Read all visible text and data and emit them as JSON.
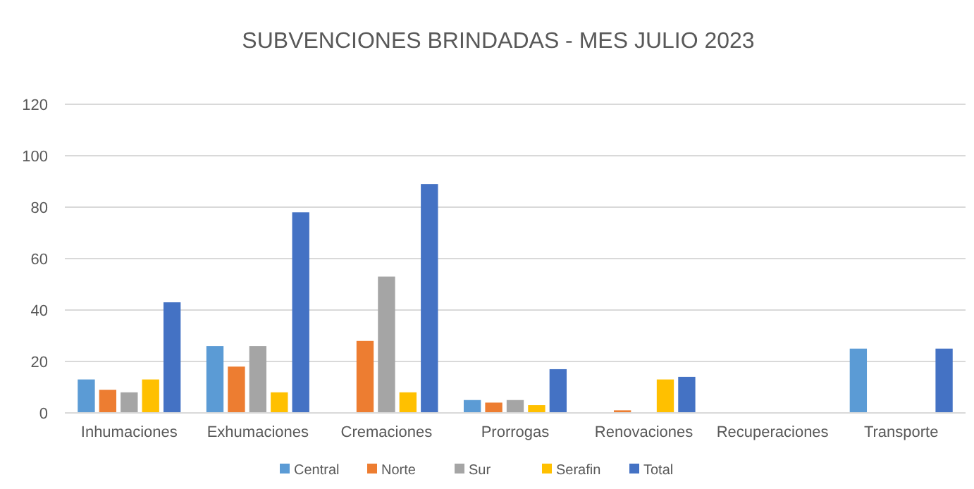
{
  "chart_data": {
    "type": "bar",
    "title": "SUBVENCIONES BRINDADAS - MES JULIO 2023",
    "categories": [
      "Inhumaciones",
      "Exhumaciones",
      "Cremaciones",
      "Prorrogas",
      "Renovaciones",
      "Recuperaciones",
      "Transporte"
    ],
    "series": [
      {
        "name": "Central",
        "color": "#5b9bd5",
        "values": [
          13,
          26,
          0,
          5,
          0,
          0,
          25
        ]
      },
      {
        "name": "Norte",
        "color": "#ed7d31",
        "values": [
          9,
          18,
          28,
          4,
          1,
          0,
          0
        ]
      },
      {
        "name": "Sur",
        "color": "#a5a5a5",
        "values": [
          8,
          26,
          53,
          5,
          0,
          0,
          0
        ]
      },
      {
        "name": "Serafin",
        "color": "#ffc000",
        "values": [
          13,
          8,
          8,
          3,
          13,
          0,
          0
        ]
      },
      {
        "name": "Total",
        "color": "#4472c4",
        "values": [
          43,
          78,
          89,
          17,
          14,
          0,
          25
        ]
      }
    ],
    "ylim": [
      0,
      120
    ],
    "yticks": [
      0,
      20,
      40,
      60,
      80,
      100,
      120
    ],
    "grid": "y",
    "legend": "bottom"
  }
}
